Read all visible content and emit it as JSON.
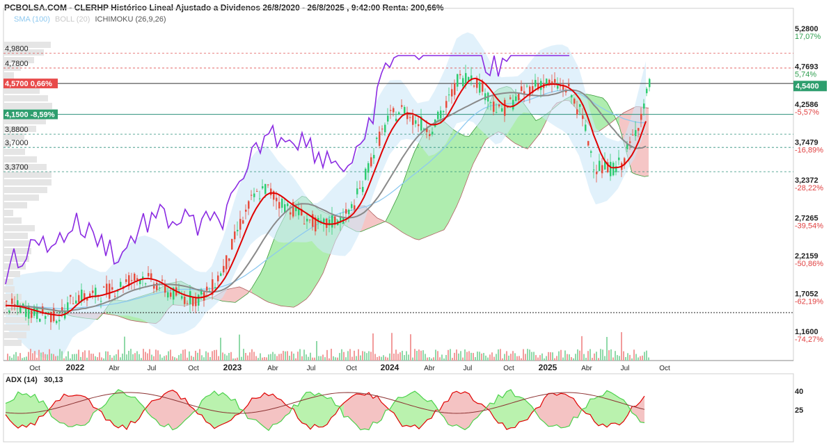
{
  "header": {
    "title": "PCBOLSA.COM - CLERHP Histórico Lineal Ajustado a Dividenos 26/8/2020 - 26/8/2025 , 9:42:00 Renta: 200,66%",
    "indicators": [
      {
        "label": "SMA (100)",
        "color": "#8ec9f0"
      },
      {
        "label": "BOLL (20)",
        "color": "#c9c9c9"
      },
      {
        "label": "ICHIMOKU (26,9,26)",
        "color": "#555555"
      }
    ]
  },
  "adx": {
    "label": "ADX (14)",
    "value": "30,13",
    "levels": [
      "40",
      "25"
    ]
  },
  "colors": {
    "up": "#2ecc71",
    "down": "#e74c3c",
    "rsi": "#8b2be2",
    "ma_fast": "#e00000",
    "ma_slow": "#8a8a8a",
    "sma": "#8ec9f0",
    "cloud_green": "#9be89b",
    "cloud_red": "#f2b8b8",
    "boll": "#cde8f8"
  },
  "left_levels": [
    {
      "label": "4,9800",
      "value": 4.98,
      "style": "dashed-red"
    },
    {
      "label": "4,7800",
      "value": 4.78,
      "style": "dashed-red"
    },
    {
      "label": "4,5700  0,66%",
      "value": 4.57,
      "style": "tag-red"
    },
    {
      "label": "4,1500  -8,59%",
      "value": 4.15,
      "style": "tag-green"
    },
    {
      "label": "3,8800",
      "value": 3.88,
      "style": "dashed-teal"
    },
    {
      "label": "3,7000",
      "value": 3.7,
      "style": "dashed-teal"
    },
    {
      "label": "3,3700",
      "value": 3.37,
      "style": "dashed-teal"
    }
  ],
  "right_axis": [
    {
      "price": "5,2800",
      "pct": "17,07%",
      "color": "#2e9e4f"
    },
    {
      "price": "4,7693",
      "pct": "5,74%",
      "color": "#2e9e4f"
    },
    {
      "price": "4,2586",
      "pct": "-5,57%",
      "color": "#e04040"
    },
    {
      "price": "3,7479",
      "pct": "-16,89%",
      "color": "#e04040"
    },
    {
      "price": "3,2372",
      "pct": "-28,22%",
      "color": "#e04040"
    },
    {
      "price": "2,7265",
      "pct": "-39,54%",
      "color": "#e04040"
    },
    {
      "price": "2,2159",
      "pct": "-50,86%",
      "color": "#e04040"
    },
    {
      "price": "1,7052",
      "pct": "-62,19%",
      "color": "#e04040"
    },
    {
      "price": "1,1600",
      "pct": "-74,27%",
      "color": "#e04040"
    }
  ],
  "current_tag": {
    "label": "4,5400",
    "value": 4.54
  },
  "x_axis": [
    {
      "label": "Oct",
      "bold": false
    },
    {
      "label": "2022",
      "bold": true
    },
    {
      "label": "Abr",
      "bold": false
    },
    {
      "label": "Jul",
      "bold": false
    },
    {
      "label": "Oct",
      "bold": false
    },
    {
      "label": "2023",
      "bold": true
    },
    {
      "label": "Abr",
      "bold": false
    },
    {
      "label": "Jul",
      "bold": false
    },
    {
      "label": "Oct",
      "bold": false
    },
    {
      "label": "2024",
      "bold": true
    },
    {
      "label": "Abr",
      "bold": false
    },
    {
      "label": "Jul",
      "bold": false
    },
    {
      "label": "Oct",
      "bold": false
    },
    {
      "label": "2025",
      "bold": true
    },
    {
      "label": "Abr",
      "bold": false
    },
    {
      "label": "Jul",
      "bold": false
    },
    {
      "label": "Oct",
      "bold": false
    }
  ],
  "chart_data": {
    "type": "line",
    "series": [
      {
        "x": [
          "2021-09",
          "2021-10",
          "2021-11",
          "2021-12",
          "2022-01",
          "2022-02",
          "2022-03",
          "2022-04",
          "2022-05",
          "2022-06",
          "2022-07",
          "2022-08",
          "2022-09",
          "2022-10",
          "2022-11",
          "2022-12",
          "2023-01",
          "2023-02",
          "2023-03",
          "2023-04",
          "2023-05",
          "2023-06",
          "2023-07",
          "2023-08",
          "2023-09",
          "2023-10",
          "2023-11",
          "2023-12",
          "2024-01",
          "2024-02",
          "2024-03",
          "2024-04",
          "2024-05",
          "2024-06",
          "2024-07",
          "2024-08",
          "2024-09",
          "2024-10",
          "2024-11",
          "2024-12",
          "2025-01",
          "2025-02",
          "2025-03",
          "2025-04",
          "2025-05",
          "2025-06",
          "2025-07",
          "2025-08"
        ],
        "values": [
          1.55,
          1.52,
          1.45,
          1.42,
          1.4,
          1.68,
          1.66,
          1.72,
          1.78,
          1.9,
          1.94,
          1.84,
          1.72,
          1.66,
          1.64,
          1.78,
          2.1,
          2.62,
          3.0,
          3.15,
          2.95,
          2.86,
          2.72,
          2.62,
          2.7,
          2.78,
          3.18,
          3.72,
          4.1,
          4.22,
          4.05,
          3.95,
          4.2,
          4.62,
          4.68,
          4.45,
          4.18,
          4.32,
          4.48,
          4.58,
          4.55,
          4.5,
          4.15,
          3.45,
          3.4,
          3.48,
          3.92,
          4.54
        ]
      }
    ],
    "ylim": [
      1.16,
      5.28
    ],
    "last": 4.54
  }
}
